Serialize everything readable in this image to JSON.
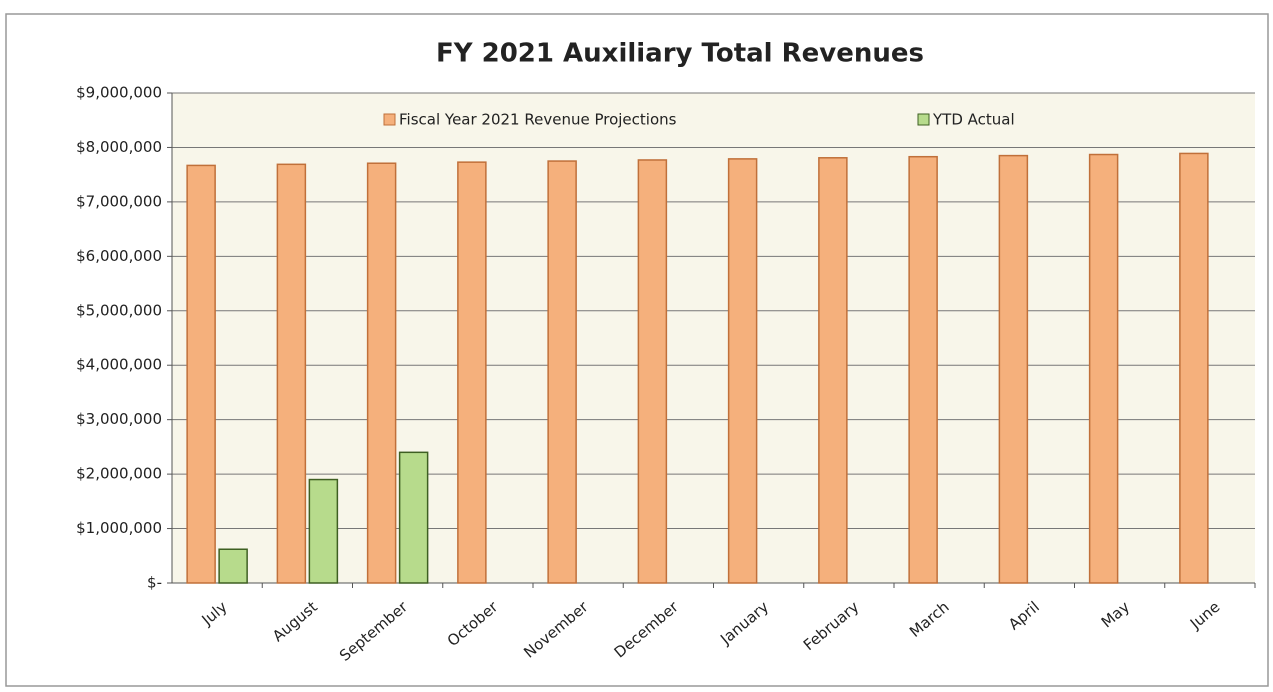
{
  "chart_data": {
    "type": "bar",
    "title": "FY 2021 Auxiliary Total Revenues",
    "categories": [
      "July",
      "August",
      "September",
      "October",
      "November",
      "December",
      "January",
      "February",
      "March",
      "April",
      "May",
      "June"
    ],
    "series": [
      {
        "name": "Fiscal Year 2021 Revenue Projections",
        "color": "#f5b07c",
        "values": [
          7670000,
          7690000,
          7710000,
          7730000,
          7750000,
          7770000,
          7790000,
          7810000,
          7830000,
          7850000,
          7870000,
          7890000
        ]
      },
      {
        "name": "YTD Actual",
        "color": "#b7db8c",
        "values": [
          620000,
          1900000,
          2400000,
          null,
          null,
          null,
          null,
          null,
          null,
          null,
          null,
          null
        ]
      }
    ],
    "ylim": [
      0,
      9000000
    ],
    "yticks": [
      {
        "value": 0,
        "label": "$-"
      },
      {
        "value": 1000000,
        "label": "$1,000,000"
      },
      {
        "value": 2000000,
        "label": "$2,000,000"
      },
      {
        "value": 3000000,
        "label": "$3,000,000"
      },
      {
        "value": 4000000,
        "label": "$4,000,000"
      },
      {
        "value": 5000000,
        "label": "$5,000,000"
      },
      {
        "value": 6000000,
        "label": "$6,000,000"
      },
      {
        "value": 7000000,
        "label": "$7,000,000"
      },
      {
        "value": 8000000,
        "label": "$8,000,000"
      },
      {
        "value": 9000000,
        "label": "$9,000,000"
      }
    ],
    "grid": true,
    "legend": "top"
  }
}
